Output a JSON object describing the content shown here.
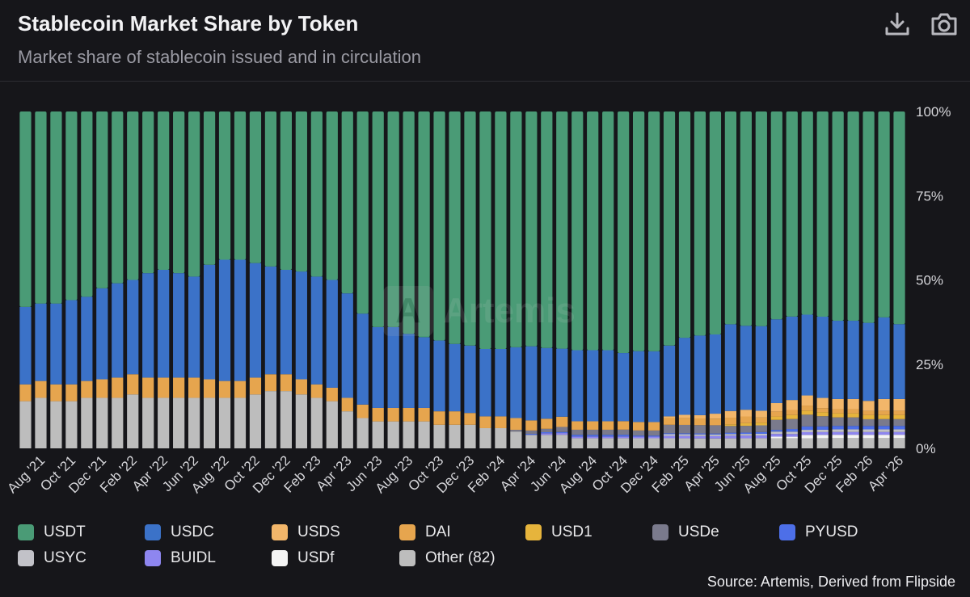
{
  "header": {
    "title": "Stablecoin Market Share by Token",
    "subtitle": "Market share of stablecoin issued and in circulation",
    "download_icon": "download-icon",
    "camera_icon": "camera-icon"
  },
  "watermark": {
    "text": "Artemis",
    "logo_letter": "A"
  },
  "source": "Source: Artemis, Derived from Flipside",
  "legend_items": [
    {
      "name": "USDT",
      "color": "#4a9b76"
    },
    {
      "name": "USDC",
      "color": "#3b72c8"
    },
    {
      "name": "USDS",
      "color": "#f2b66a"
    },
    {
      "name": "DAI",
      "color": "#e6a54e"
    },
    {
      "name": "USD1",
      "color": "#e6b43c"
    },
    {
      "name": "USDe",
      "color": "#7a7a8c"
    },
    {
      "name": "PYUSD",
      "color": "#4d6fe8"
    },
    {
      "name": "USYC",
      "color": "#c2c2c8"
    },
    {
      "name": "BUIDL",
      "color": "#8e86f0"
    },
    {
      "name": "USDf",
      "color": "#f4f4f4"
    },
    {
      "name": "Other (82)",
      "color": "#bdbdbd"
    }
  ],
  "chart_data": {
    "type": "bar",
    "stacked": true,
    "percent": true,
    "title": "Stablecoin Market Share by Token",
    "subtitle": "Market share of stablecoin issued and in circulation",
    "ylim": [
      0,
      100
    ],
    "y_ticks": [
      "0%",
      "25%",
      "50%",
      "75%",
      "100%"
    ],
    "x_tick_labels": [
      "Aug '21",
      "Oct '21",
      "Dec '21",
      "Feb '22",
      "Apr '22",
      "Jun '22",
      "Aug '22",
      "Oct '22",
      "Dec '22",
      "Feb '23",
      "Apr '23",
      "Jun '23",
      "Aug '23",
      "Oct '23",
      "Dec '23",
      "Feb '24",
      "Apr '24",
      "Jun '24",
      "Aug '24",
      "Oct '24",
      "Dec '24",
      "Feb '25",
      "Apr '25",
      "Jun '25",
      "Aug '25",
      "Oct '25",
      "Dec '25",
      "Feb '26",
      "Apr '26"
    ],
    "tick_every": 2,
    "tick_offset": 1,
    "categories": [
      "Jul '21",
      "Aug '21",
      "Sep '21",
      "Oct '21",
      "Nov '21",
      "Dec '21",
      "Jan '22",
      "Feb '22",
      "Mar '22",
      "Apr '22",
      "May '22",
      "Jun '22",
      "Jul '22",
      "Aug '22",
      "Sep '22",
      "Oct '22",
      "Nov '22",
      "Dec '22",
      "Jan '23",
      "Feb '23",
      "Mar '23",
      "Apr '23",
      "May '23",
      "Jun '23",
      "Jul '23",
      "Aug '23",
      "Sep '23",
      "Oct '23",
      "Nov '23",
      "Dec '23",
      "Jan '24",
      "Feb '24",
      "Mar '24",
      "Apr '24",
      "May '24",
      "Jun '24",
      "Jul '24",
      "Aug '24",
      "Sep '24",
      "Oct '24",
      "Nov '24",
      "Dec '24",
      "Jan '25",
      "Feb '25",
      "Mar '25",
      "Apr '25",
      "May '25",
      "Jun '25",
      "Jul '25",
      "Aug '25",
      "Sep '25",
      "Oct '25",
      "Nov '25",
      "Dec '25",
      "Jan '26",
      "Feb '26",
      "Mar '26",
      "Apr '26"
    ],
    "legend_position": "bottom",
    "grid": false,
    "series": [
      {
        "name": "Other (82)",
        "color": "#bdbdbd",
        "values": [
          14,
          15,
          14,
          14,
          15,
          15,
          15,
          16,
          15,
          15,
          15,
          15,
          15,
          15,
          15,
          16,
          17,
          17,
          16,
          15,
          14,
          11,
          9,
          8,
          8,
          8,
          8,
          7,
          7,
          7,
          6,
          6,
          5,
          4,
          4,
          4,
          3,
          3,
          3,
          3,
          3,
          3,
          3,
          3,
          3,
          3,
          3,
          3,
          3,
          3,
          3,
          3,
          3,
          3,
          3,
          3,
          3,
          3
        ]
      },
      {
        "name": "USDf",
        "color": "#f4f4f4",
        "values": [
          0,
          0,
          0,
          0,
          0,
          0,
          0,
          0,
          0,
          0,
          0,
          0,
          0,
          0,
          0,
          0,
          0,
          0,
          0,
          0,
          0,
          0,
          0,
          0,
          0,
          0,
          0,
          0,
          0,
          0,
          0,
          0,
          0,
          0,
          0,
          0,
          0,
          0,
          0,
          0,
          0,
          0,
          0,
          0,
          0,
          0,
          0,
          0,
          0,
          0.5,
          0.5,
          1,
          1,
          1,
          1,
          1,
          1,
          1
        ]
      },
      {
        "name": "BUIDL",
        "color": "#8e86f0",
        "values": [
          0,
          0,
          0,
          0,
          0,
          0,
          0,
          0,
          0,
          0,
          0,
          0,
          0,
          0,
          0,
          0,
          0,
          0,
          0,
          0,
          0,
          0,
          0,
          0,
          0,
          0,
          0,
          0,
          0,
          0,
          0,
          0,
          0,
          0,
          0.5,
          0.5,
          0.5,
          0.5,
          0.5,
          0.5,
          0.5,
          0.5,
          0.7,
          0.7,
          0.7,
          0.7,
          0.8,
          0.8,
          0.8,
          0.8,
          0.8,
          0.8,
          0.8,
          0.8,
          0.8,
          0.8,
          0.8,
          0.8
        ]
      },
      {
        "name": "USYC",
        "color": "#c2c2c8",
        "values": [
          0,
          0,
          0,
          0,
          0,
          0,
          0,
          0,
          0,
          0,
          0,
          0,
          0,
          0,
          0,
          0,
          0,
          0,
          0,
          0,
          0,
          0,
          0,
          0,
          0,
          0,
          0,
          0,
          0,
          0,
          0,
          0,
          0,
          0,
          0,
          0,
          0,
          0,
          0,
          0,
          0,
          0,
          0.5,
          0.5,
          0.5,
          0.5,
          0.5,
          0.5,
          0.5,
          0.7,
          0.7,
          0.7,
          0.7,
          0.8,
          0.8,
          0.8,
          0.8,
          0.8
        ]
      },
      {
        "name": "PYUSD",
        "color": "#4d6fe8",
        "values": [
          0,
          0,
          0,
          0,
          0,
          0,
          0,
          0,
          0,
          0,
          0,
          0,
          0,
          0,
          0,
          0,
          0,
          0,
          0,
          0,
          0,
          0,
          0,
          0,
          0,
          0,
          0,
          0,
          0,
          0,
          0,
          0,
          0,
          0.3,
          0.3,
          0.3,
          0.5,
          0.5,
          0.5,
          0.5,
          0.3,
          0.3,
          0.3,
          0.3,
          0.3,
          0.3,
          0.4,
          0.4,
          0.5,
          0.5,
          0.8,
          1,
          1,
          1,
          1,
          1,
          1,
          1
        ]
      },
      {
        "name": "USDe",
        "color": "#7a7a8c",
        "values": [
          0,
          0,
          0,
          0,
          0,
          0,
          0,
          0,
          0,
          0,
          0,
          0,
          0,
          0,
          0,
          0,
          0,
          0,
          0,
          0,
          0,
          0,
          0,
          0,
          0,
          0,
          0,
          0,
          0,
          0,
          0,
          0,
          0.5,
          1,
          1,
          1.5,
          1.5,
          1.5,
          1.5,
          1.5,
          1.5,
          1.5,
          2.5,
          2.5,
          2.5,
          2.5,
          2,
          2,
          2,
          3,
          3,
          3.5,
          3,
          2.5,
          2.5,
          2,
          2,
          2
        ]
      },
      {
        "name": "USD1",
        "color": "#e6b43c",
        "values": [
          0,
          0,
          0,
          0,
          0,
          0,
          0,
          0,
          0,
          0,
          0,
          0,
          0,
          0,
          0,
          0,
          0,
          0,
          0,
          0,
          0,
          0,
          0,
          0,
          0,
          0,
          0,
          0,
          0,
          0,
          0,
          0,
          0,
          0,
          0,
          0,
          0,
          0,
          0,
          0,
          0,
          0,
          0,
          0,
          0,
          0,
          0.5,
          0.8,
          0.8,
          1,
          1.2,
          1.2,
          1.2,
          1.2,
          1.2,
          1.2,
          1.2,
          1.2
        ]
      },
      {
        "name": "DAI",
        "color": "#e6a54e",
        "values": [
          5,
          5,
          5,
          5,
          5,
          5.5,
          6,
          6,
          6,
          6,
          6,
          6,
          5.5,
          5,
          5,
          5,
          5,
          5,
          4.5,
          4,
          4,
          4,
          4,
          4,
          4,
          4,
          4,
          4,
          4,
          3.5,
          3.5,
          3.5,
          3.5,
          3,
          3,
          3,
          2.5,
          2.5,
          2.5,
          2.5,
          2.5,
          2.5,
          2,
          2,
          2,
          2,
          2,
          2,
          1.5,
          1.5,
          1.5,
          1.5,
          1.2,
          1.2,
          1.2,
          1.2,
          1.2,
          1.2
        ]
      },
      {
        "name": "USDS",
        "color": "#f2b66a",
        "values": [
          0,
          0,
          0,
          0,
          0,
          0,
          0,
          0,
          0,
          0,
          0,
          0,
          0,
          0,
          0,
          0,
          0,
          0,
          0,
          0,
          0,
          0,
          0,
          0,
          0,
          0,
          0,
          0,
          0,
          0,
          0,
          0,
          0,
          0,
          0,
          0,
          0,
          0,
          0,
          0,
          0,
          0,
          0.5,
          1,
          1,
          1.5,
          2,
          2,
          2,
          2.5,
          3,
          3,
          3,
          3,
          3,
          3,
          3.5,
          3.5
        ]
      },
      {
        "name": "USDC",
        "color": "#3b72c8",
        "values": [
          23,
          23,
          24,
          25,
          25,
          27,
          28,
          28,
          31,
          32,
          31,
          30,
          34,
          36,
          36,
          34,
          32,
          31,
          32,
          32,
          32,
          31,
          27,
          24,
          24,
          22,
          21,
          21,
          20,
          20,
          20,
          20,
          21,
          22,
          21,
          20,
          21,
          21,
          21,
          20,
          21,
          21,
          21,
          23,
          24,
          24,
          26,
          25,
          25,
          25,
          25,
          24,
          24,
          23,
          23,
          23,
          24,
          22
        ]
      },
      {
        "name": "USDT",
        "color": "#4a9b76",
        "values": [
          58,
          57,
          57,
          56,
          55,
          52.5,
          51,
          50,
          48,
          47,
          48,
          49,
          45.5,
          44,
          44,
          45,
          46,
          47,
          47.5,
          49,
          50,
          54,
          60,
          64,
          64,
          66,
          67,
          68,
          69,
          69.5,
          70.5,
          70.5,
          70,
          69.7,
          70.2,
          69.7,
          70.5,
          70.5,
          70.5,
          71,
          71,
          71.2,
          69.5,
          67.5,
          67.5,
          67.5,
          63.8,
          63.8,
          63.4,
          62,
          61.5,
          60.3,
          60.6,
          61.5,
          61.5,
          62.3,
          60.5,
          62.5
        ]
      }
    ]
  }
}
